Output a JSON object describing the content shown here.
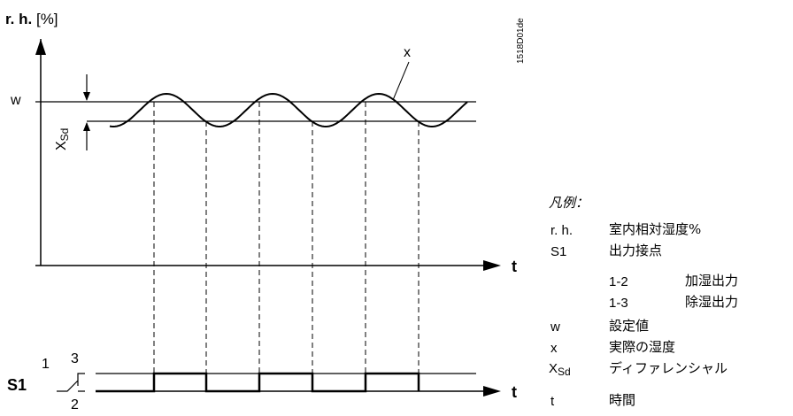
{
  "chart": {
    "y_axis_label_bold": "r. h.",
    "y_axis_label_unit": "[%]",
    "w_label": "w",
    "xsd_label_main": "X",
    "xsd_label_sub": "Sd",
    "x_label": "x",
    "t_label_top": "t",
    "t_label_bottom": "t",
    "s1_label": "S1",
    "contact_1": "1",
    "contact_2": "2",
    "contact_3": "3",
    "doc_id": "1518D01de"
  },
  "legend": {
    "title": "凡例：",
    "rows": [
      {
        "key": "r. h.",
        "value": "室内相対湿度%"
      },
      {
        "key": "S1",
        "value": "出力接点"
      },
      {
        "key": "1-2",
        "value": "加湿出力"
      },
      {
        "key": "1-3",
        "value": "除湿出力"
      },
      {
        "key": "w",
        "value": "設定値"
      },
      {
        "key": "x",
        "value": "実際の湿度"
      },
      {
        "key_main": "X",
        "key_sub": "Sd",
        "value": "ディファレンシャル"
      },
      {
        "key": "t",
        "value": "時間"
      }
    ]
  }
}
